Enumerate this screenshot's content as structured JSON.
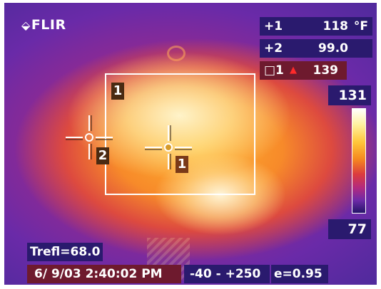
{
  "brand": {
    "logo_text": "FLIR",
    "logo_mark": "⬙"
  },
  "spot_readouts": [
    {
      "label": "+1",
      "value": "118",
      "unit": "°F"
    },
    {
      "label": "+2",
      "value": "99.0"
    }
  ],
  "box_readout": {
    "label": "□1",
    "alarm_icon": "▲",
    "value": "139"
  },
  "color_scale": {
    "max_label": "131",
    "min_label": "77",
    "palette": "iron"
  },
  "markers": {
    "box_tag": "1",
    "spot1_tag": "1",
    "spot2_tag": "2"
  },
  "status": {
    "trefl": "Trefl=68.0",
    "datetime": "6/ 9/03  2:40:02 PM",
    "range": "-40 - +250",
    "emissivity": "e=0.95"
  },
  "colors": {
    "panel": "#2a1a6e",
    "panel_alt": "#6e1a2e",
    "alarm": "#ff2a2a"
  }
}
